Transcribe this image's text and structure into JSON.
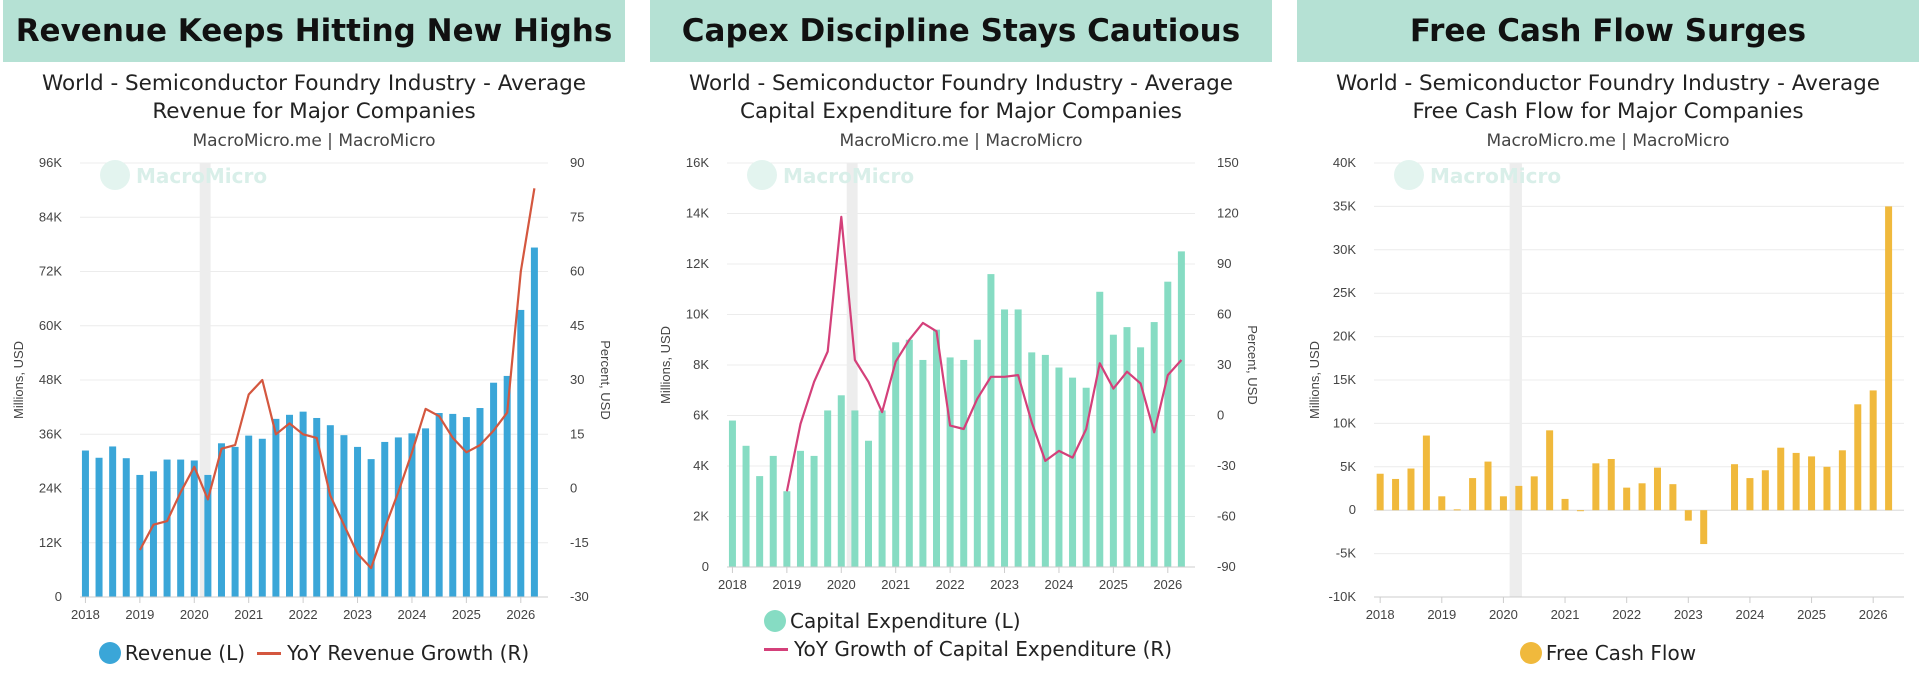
{
  "panels": [
    {
      "banner": "Revenue Keeps Hitting New Highs",
      "title_line1": "World - Semiconductor Foundry Industry - Average",
      "title_line2": "Revenue for Major Companies",
      "source": "MacroMicro.me | MacroMicro",
      "watermark": "MacroMicro",
      "legend": [
        {
          "type": "dot",
          "label": "Revenue (L)",
          "color": "#3aa6d8"
        },
        {
          "type": "line",
          "label": "YoY Revenue Growth (R)",
          "color": "#d4573f"
        }
      ]
    },
    {
      "banner": "Capex Discipline Stays Cautious",
      "title_line1": "World - Semiconductor Foundry Industry - Average",
      "title_line2": "Capital Expenditure for Major Companies",
      "source": "MacroMicro.me | MacroMicro",
      "watermark": "MacroMicro",
      "legend": [
        {
          "type": "dot",
          "label": "Capital Expenditure (L)",
          "color": "#86dcc3"
        },
        {
          "type": "line",
          "label": "YoY Growth of Capital Expenditure (R)",
          "color": "#d4407a"
        }
      ]
    },
    {
      "banner": "Free Cash Flow Surges",
      "title_line1": "World - Semiconductor Foundry Industry - Average",
      "title_line2": "Free Cash Flow for Major Companies",
      "source": "MacroMicro.me | MacroMicro",
      "watermark": "MacroMicro",
      "legend": [
        {
          "type": "dot",
          "label": "Free Cash Flow",
          "color": "#f0b93c"
        }
      ]
    }
  ],
  "chart_data": [
    {
      "type": "bar",
      "bar_color": "#3aa6d8",
      "line_color": "#d4573f",
      "ylabel": "Millions, USD",
      "y2label": "Percent, USD",
      "ylim": [
        0,
        96000
      ],
      "yticks": [
        0,
        12000,
        24000,
        36000,
        48000,
        60000,
        72000,
        84000,
        96000
      ],
      "ytick_labels": [
        "0",
        "12K",
        "24K",
        "36K",
        "48K",
        "60K",
        "72K",
        "84K",
        "96K"
      ],
      "y2lim": [
        -30,
        90
      ],
      "y2ticks": [
        -30,
        -15,
        0,
        15,
        30,
        45,
        60,
        75,
        90
      ],
      "y2tick_labels": [
        "-30",
        "-15",
        "0",
        "15",
        "30",
        "45",
        "60",
        "75",
        "90"
      ],
      "xlim": [
        2017.9,
        2026.5
      ],
      "xticks": [
        2018,
        2019,
        2020,
        2021,
        2022,
        2023,
        2024,
        2025,
        2026
      ],
      "xtick_labels": [
        "2018",
        "2019",
        "2020",
        "2021",
        "2022",
        "2023",
        "2024",
        "2025",
        "2026"
      ],
      "recession_band": [
        2020.1,
        2020.3
      ],
      "bars_x": [
        2018.0,
        2018.25,
        2018.5,
        2018.75,
        2019.0,
        2019.25,
        2019.5,
        2019.75,
        2020.0,
        2020.25,
        2020.5,
        2020.75,
        2021.0,
        2021.25,
        2021.5,
        2021.75,
        2022.0,
        2022.25,
        2022.5,
        2022.75,
        2023.0,
        2023.25,
        2023.5,
        2023.75,
        2024.0,
        2024.25,
        2024.5,
        2024.75,
        2025.0,
        2025.25,
        2025.5,
        2025.75,
        2026.0,
        2026.25
      ],
      "bars_y": [
        32400,
        30800,
        33300,
        30700,
        27000,
        27800,
        30400,
        30400,
        30200,
        27000,
        34000,
        33200,
        35700,
        35000,
        39400,
        40300,
        41000,
        39600,
        38000,
        35800,
        33200,
        30500,
        34300,
        35300,
        36200,
        37300,
        40700,
        40500,
        39800,
        41800,
        47400,
        48900,
        63500,
        77300
      ],
      "line_x": [
        2019.0,
        2019.25,
        2019.5,
        2019.75,
        2020.0,
        2020.25,
        2020.5,
        2020.75,
        2021.0,
        2021.25,
        2021.5,
        2021.75,
        2022.0,
        2022.25,
        2022.5,
        2022.75,
        2023.0,
        2023.25,
        2023.5,
        2023.75,
        2024.0,
        2024.25,
        2024.5,
        2024.75,
        2025.0,
        2025.25,
        2025.5,
        2025.75,
        2026.0,
        2026.25
      ],
      "line_y": [
        -17,
        -10,
        -9,
        -1,
        6,
        -3,
        11,
        12,
        26,
        30,
        15,
        18,
        15,
        14,
        -2,
        -10,
        -18,
        -22,
        -11,
        -1,
        10,
        22,
        20,
        14,
        10,
        12,
        16,
        21,
        60,
        83
      ],
      "series": [
        {
          "name": "Revenue (L)",
          "axis": "left"
        },
        {
          "name": "YoY Revenue Growth (R)",
          "axis": "right"
        }
      ]
    },
    {
      "type": "bar",
      "bar_color": "#86dcc3",
      "line_color": "#d4407a",
      "ylabel": "Millions, USD",
      "y2label": "Percent, USD",
      "ylim": [
        0,
        16000
      ],
      "yticks": [
        0,
        2000,
        4000,
        6000,
        8000,
        10000,
        12000,
        14000,
        16000
      ],
      "ytick_labels": [
        "0",
        "2K",
        "4K",
        "6K",
        "8K",
        "10K",
        "12K",
        "14K",
        "16K"
      ],
      "y2lim": [
        -90,
        150
      ],
      "y2ticks": [
        -90,
        -60,
        -30,
        0,
        30,
        60,
        90,
        120,
        150
      ],
      "y2tick_labels": [
        "-90",
        "-60",
        "-30",
        "0",
        "30",
        "60",
        "90",
        "120",
        "150"
      ],
      "xlim": [
        2017.9,
        2026.5
      ],
      "xticks": [
        2018,
        2019,
        2020,
        2021,
        2022,
        2023,
        2024,
        2025,
        2026
      ],
      "xtick_labels": [
        "2018",
        "2019",
        "2020",
        "2021",
        "2022",
        "2023",
        "2024",
        "2025",
        "2026"
      ],
      "recession_band": [
        2020.1,
        2020.3
      ],
      "bars_x": [
        2018.0,
        2018.25,
        2018.5,
        2018.75,
        2019.0,
        2019.25,
        2019.5,
        2019.75,
        2020.0,
        2020.25,
        2020.5,
        2020.75,
        2021.0,
        2021.25,
        2021.5,
        2021.75,
        2022.0,
        2022.25,
        2022.5,
        2022.75,
        2023.0,
        2023.25,
        2023.5,
        2023.75,
        2024.0,
        2024.25,
        2024.5,
        2024.75,
        2025.0,
        2025.25,
        2025.5,
        2025.75,
        2026.0,
        2026.25
      ],
      "bars_y": [
        5800,
        4800,
        3600,
        4400,
        3000,
        4600,
        4400,
        6200,
        6800,
        6200,
        5000,
        6200,
        8900,
        9000,
        8200,
        9400,
        8300,
        8200,
        9000,
        11600,
        10200,
        10200,
        8500,
        8400,
        7900,
        7500,
        7100,
        10900,
        9200,
        9500,
        8700,
        9700,
        11300,
        12500
      ],
      "line_x": [
        2019.0,
        2019.25,
        2019.5,
        2019.75,
        2020.0,
        2020.25,
        2020.5,
        2020.75,
        2021.0,
        2021.25,
        2021.5,
        2021.75,
        2022.0,
        2022.25,
        2022.5,
        2022.75,
        2023.0,
        2023.25,
        2023.5,
        2023.75,
        2024.0,
        2024.25,
        2024.5,
        2024.75,
        2025.0,
        2025.25,
        2025.5,
        2025.75,
        2026.0,
        2026.25
      ],
      "line_y": [
        -45,
        -5,
        20,
        38,
        118,
        33,
        20,
        2,
        32,
        45,
        55,
        50,
        -6,
        -8,
        10,
        23,
        23,
        24,
        -4,
        -27,
        -21,
        -25,
        -8,
        31,
        16,
        26,
        19,
        -10,
        24,
        33
      ],
      "series": [
        {
          "name": "Capital Expenditure (L)",
          "axis": "left"
        },
        {
          "name": "YoY Growth of Capital Expenditure (R)",
          "axis": "right"
        }
      ]
    },
    {
      "type": "bar",
      "bar_color": "#f0b93c",
      "ylabel": "Millions, USD",
      "ylim": [
        -10000,
        40000
      ],
      "yticks": [
        -10000,
        -5000,
        0,
        5000,
        10000,
        15000,
        20000,
        25000,
        30000,
        35000,
        40000
      ],
      "ytick_labels": [
        "-10K",
        "-5K",
        "0",
        "5K",
        "10K",
        "15K",
        "20K",
        "25K",
        "30K",
        "35K",
        "40K"
      ],
      "xlim": [
        2017.9,
        2026.5
      ],
      "xticks": [
        2018,
        2019,
        2020,
        2021,
        2022,
        2023,
        2024,
        2025,
        2026
      ],
      "xtick_labels": [
        "2018",
        "2019",
        "2020",
        "2021",
        "2022",
        "2023",
        "2024",
        "2025",
        "2026"
      ],
      "recession_band": [
        2020.1,
        2020.3
      ],
      "bars_x": [
        2018.0,
        2018.25,
        2018.5,
        2018.75,
        2019.0,
        2019.25,
        2019.5,
        2019.75,
        2020.0,
        2020.25,
        2020.5,
        2020.75,
        2021.0,
        2021.25,
        2021.5,
        2021.75,
        2022.0,
        2022.25,
        2022.5,
        2022.75,
        2023.0,
        2023.25,
        2023.5,
        2023.75,
        2024.0,
        2024.25,
        2024.5,
        2024.75,
        2025.0,
        2025.25,
        2025.5,
        2025.75,
        2026.0,
        2026.25
      ],
      "bars_y": [
        4200,
        3600,
        4800,
        8600,
        1600,
        100,
        3700,
        5600,
        1600,
        2800,
        3900,
        9200,
        1300,
        -100,
        5400,
        5900,
        2600,
        3100,
        4900,
        3000,
        -1200,
        -3900,
        0,
        5300,
        3700,
        4600,
        7200,
        6600,
        6200,
        5000,
        6900,
        12200,
        13800,
        35000
      ],
      "series": [
        {
          "name": "Free Cash Flow",
          "axis": "left"
        }
      ]
    }
  ]
}
